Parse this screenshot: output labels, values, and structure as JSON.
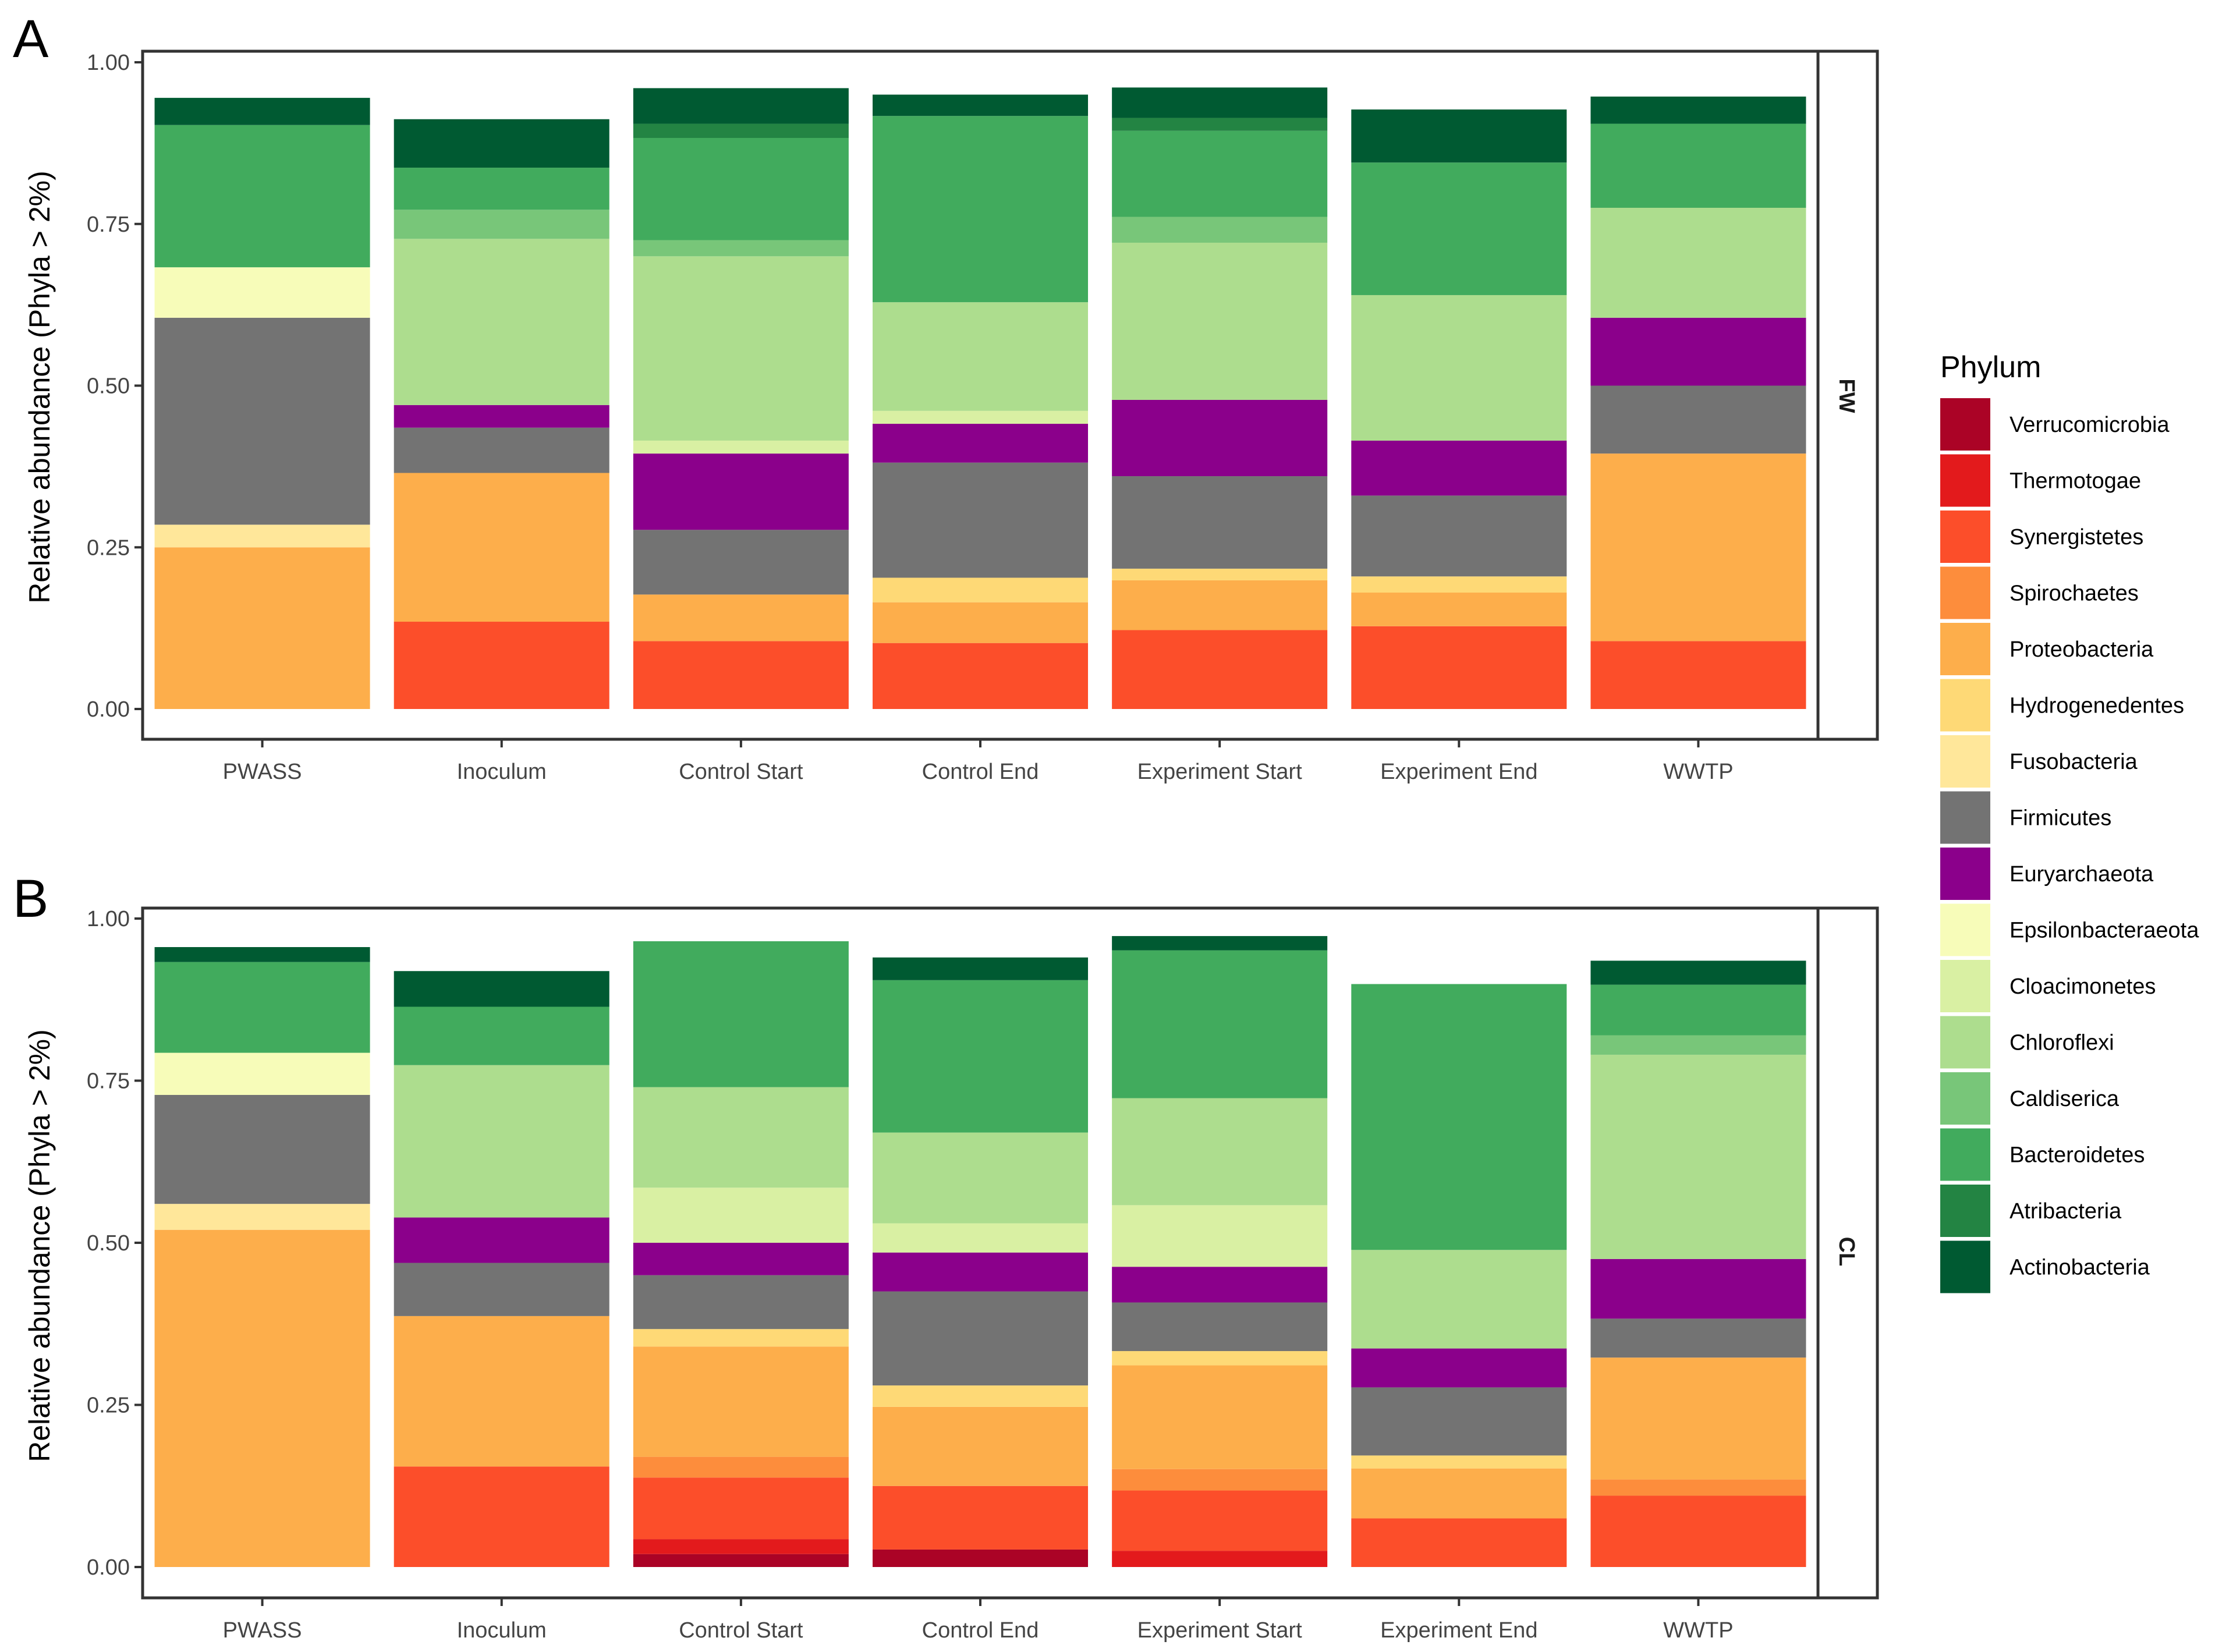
{
  "chart_data": [
    {
      "type": "bar",
      "stacked": true,
      "panel_label": "A",
      "strip_label": "FW",
      "ylabel": "Relative abundance (Phyla > 2%)",
      "ylim": [
        0,
        1.0
      ],
      "y_ticks": [
        "0.00",
        "0.25",
        "0.50",
        "0.75",
        "1.00"
      ],
      "categories": [
        "PWASS",
        "Inoculum",
        "Control Start",
        "Control End",
        "Experiment Start",
        "Experiment End",
        "WWTP"
      ],
      "series": [
        {
          "name": "Verrucomicrobia",
          "values": [
            0,
            0,
            0,
            0,
            0,
            0,
            0
          ]
        },
        {
          "name": "Thermotogae",
          "values": [
            0,
            0,
            0,
            0,
            0,
            0,
            0
          ]
        },
        {
          "name": "Synergistetes",
          "values": [
            0,
            0.135,
            0.105,
            0.102,
            0.122,
            0.128,
            0.105
          ]
        },
        {
          "name": "Spirochaetes",
          "values": [
            0,
            0,
            0,
            0,
            0,
            0,
            0
          ]
        },
        {
          "name": "Proteobacteria",
          "values": [
            0.25,
            0.23,
            0.072,
            0.063,
            0.077,
            0.052,
            0.29
          ]
        },
        {
          "name": "Hydrogenedentes",
          "values": [
            0,
            0,
            0,
            0.038,
            0.018,
            0.025,
            0
          ]
        },
        {
          "name": "Fusobacteria",
          "values": [
            0.035,
            0,
            0,
            0,
            0,
            0,
            0
          ]
        },
        {
          "name": "Firmicutes",
          "values": [
            0.32,
            0.07,
            0.1,
            0.178,
            0.143,
            0.125,
            0.105
          ]
        },
        {
          "name": "Euryarchaeota",
          "values": [
            0,
            0.035,
            0.118,
            0.06,
            0.118,
            0.085,
            0.105
          ]
        },
        {
          "name": "Epsilonbacteraeota",
          "values": [
            0.078,
            0,
            0,
            0,
            0,
            0,
            0
          ]
        },
        {
          "name": "Cloacimonetes",
          "values": [
            0,
            0,
            0.02,
            0.02,
            0,
            0,
            0
          ]
        },
        {
          "name": "Chloroflexi",
          "values": [
            0,
            0.257,
            0.285,
            0.168,
            0.243,
            0.225,
            0.17
          ]
        },
        {
          "name": "Caldiserica",
          "values": [
            0,
            0.045,
            0.025,
            0,
            0.04,
            0,
            0
          ]
        },
        {
          "name": "Bacteroidetes",
          "values": [
            0.22,
            0.065,
            0.158,
            0.288,
            0.133,
            0.205,
            0.13
          ]
        },
        {
          "name": "Atribacteria",
          "values": [
            0,
            0,
            0.022,
            0,
            0.02,
            0,
            0
          ]
        },
        {
          "name": "Actinobacteria",
          "values": [
            0.042,
            0.075,
            0.055,
            0.033,
            0.047,
            0.082,
            0.042
          ]
        }
      ]
    },
    {
      "type": "bar",
      "stacked": true,
      "panel_label": "B",
      "strip_label": "CL",
      "ylabel": "Relative abundance (Phyla > 2%)",
      "ylim": [
        0,
        1.0
      ],
      "y_ticks": [
        "0.00",
        "0.25",
        "0.50",
        "0.75",
        "1.00"
      ],
      "categories": [
        "PWASS",
        "Inoculum",
        "Control Start",
        "Control End",
        "Experiment Start",
        "Experiment End",
        "WWTP"
      ],
      "series": [
        {
          "name": "Verrucomicrobia",
          "values": [
            0,
            0,
            0.02,
            0.027,
            0,
            0,
            0
          ]
        },
        {
          "name": "Thermotogae",
          "values": [
            0,
            0,
            0.023,
            0,
            0.025,
            0,
            0
          ]
        },
        {
          "name": "Synergistetes",
          "values": [
            0,
            0.155,
            0.095,
            0.098,
            0.093,
            0.075,
            0.11
          ]
        },
        {
          "name": "Spirochaetes",
          "values": [
            0,
            0,
            0.032,
            0,
            0.033,
            0,
            0.025
          ]
        },
        {
          "name": "Proteobacteria",
          "values": [
            0.52,
            0.232,
            0.17,
            0.122,
            0.16,
            0.077,
            0.188
          ]
        },
        {
          "name": "Hydrogenedentes",
          "values": [
            0,
            0,
            0.027,
            0.033,
            0.022,
            0.02,
            0
          ]
        },
        {
          "name": "Fusobacteria",
          "values": [
            0.04,
            0,
            0,
            0,
            0,
            0,
            0
          ]
        },
        {
          "name": "Firmicutes",
          "values": [
            0.168,
            0.082,
            0.083,
            0.145,
            0.075,
            0.105,
            0.06
          ]
        },
        {
          "name": "Euryarchaeota",
          "values": [
            0,
            0.07,
            0.05,
            0.06,
            0.055,
            0.06,
            0.092
          ]
        },
        {
          "name": "Epsilonbacteraeota",
          "values": [
            0.065,
            0,
            0,
            0,
            0,
            0,
            0
          ]
        },
        {
          "name": "Cloacimonetes",
          "values": [
            0,
            0,
            0.085,
            0.045,
            0.095,
            0,
            0
          ]
        },
        {
          "name": "Chloroflexi",
          "values": [
            0,
            0.235,
            0.155,
            0.14,
            0.165,
            0.152,
            0.315
          ]
        },
        {
          "name": "Caldiserica",
          "values": [
            0,
            0,
            0,
            0,
            0,
            0,
            0.03
          ]
        },
        {
          "name": "Bacteroidetes",
          "values": [
            0.14,
            0.09,
            0.225,
            0.235,
            0.228,
            0.41,
            0.078
          ]
        },
        {
          "name": "Atribacteria",
          "values": [
            0,
            0,
            0,
            0,
            0,
            0,
            0
          ]
        },
        {
          "name": "Actinobacteria",
          "values": [
            0.023,
            0.055,
            0,
            0.035,
            0.022,
            0,
            0.037
          ]
        }
      ]
    }
  ],
  "legend": {
    "title": "Phylum",
    "entries": [
      {
        "name": "Verrucomicrobia",
        "color": "#ab0326"
      },
      {
        "name": "Thermotogae",
        "color": "#e31a1c"
      },
      {
        "name": "Synergistetes",
        "color": "#fc4e2a"
      },
      {
        "name": "Spirochaetes",
        "color": "#fd8d3c"
      },
      {
        "name": "Proteobacteria",
        "color": "#fdae4b"
      },
      {
        "name": "Hydrogenedentes",
        "color": "#fed976"
      },
      {
        "name": "Fusobacteria",
        "color": "#ffe79a"
      },
      {
        "name": "Firmicutes",
        "color": "#737373"
      },
      {
        "name": "Euryarchaeota",
        "color": "#8b008b"
      },
      {
        "name": "Epsilonbacteraeota",
        "color": "#f7fcb9"
      },
      {
        "name": "Cloacimonetes",
        "color": "#d9f0a3"
      },
      {
        "name": "Chloroflexi",
        "color": "#addd8e"
      },
      {
        "name": "Caldiserica",
        "color": "#78c679"
      },
      {
        "name": "Bacteroidetes",
        "color": "#41ab5d"
      },
      {
        "name": "Atribacteria",
        "color": "#238443"
      },
      {
        "name": "Actinobacteria",
        "color": "#005a32"
      }
    ]
  }
}
